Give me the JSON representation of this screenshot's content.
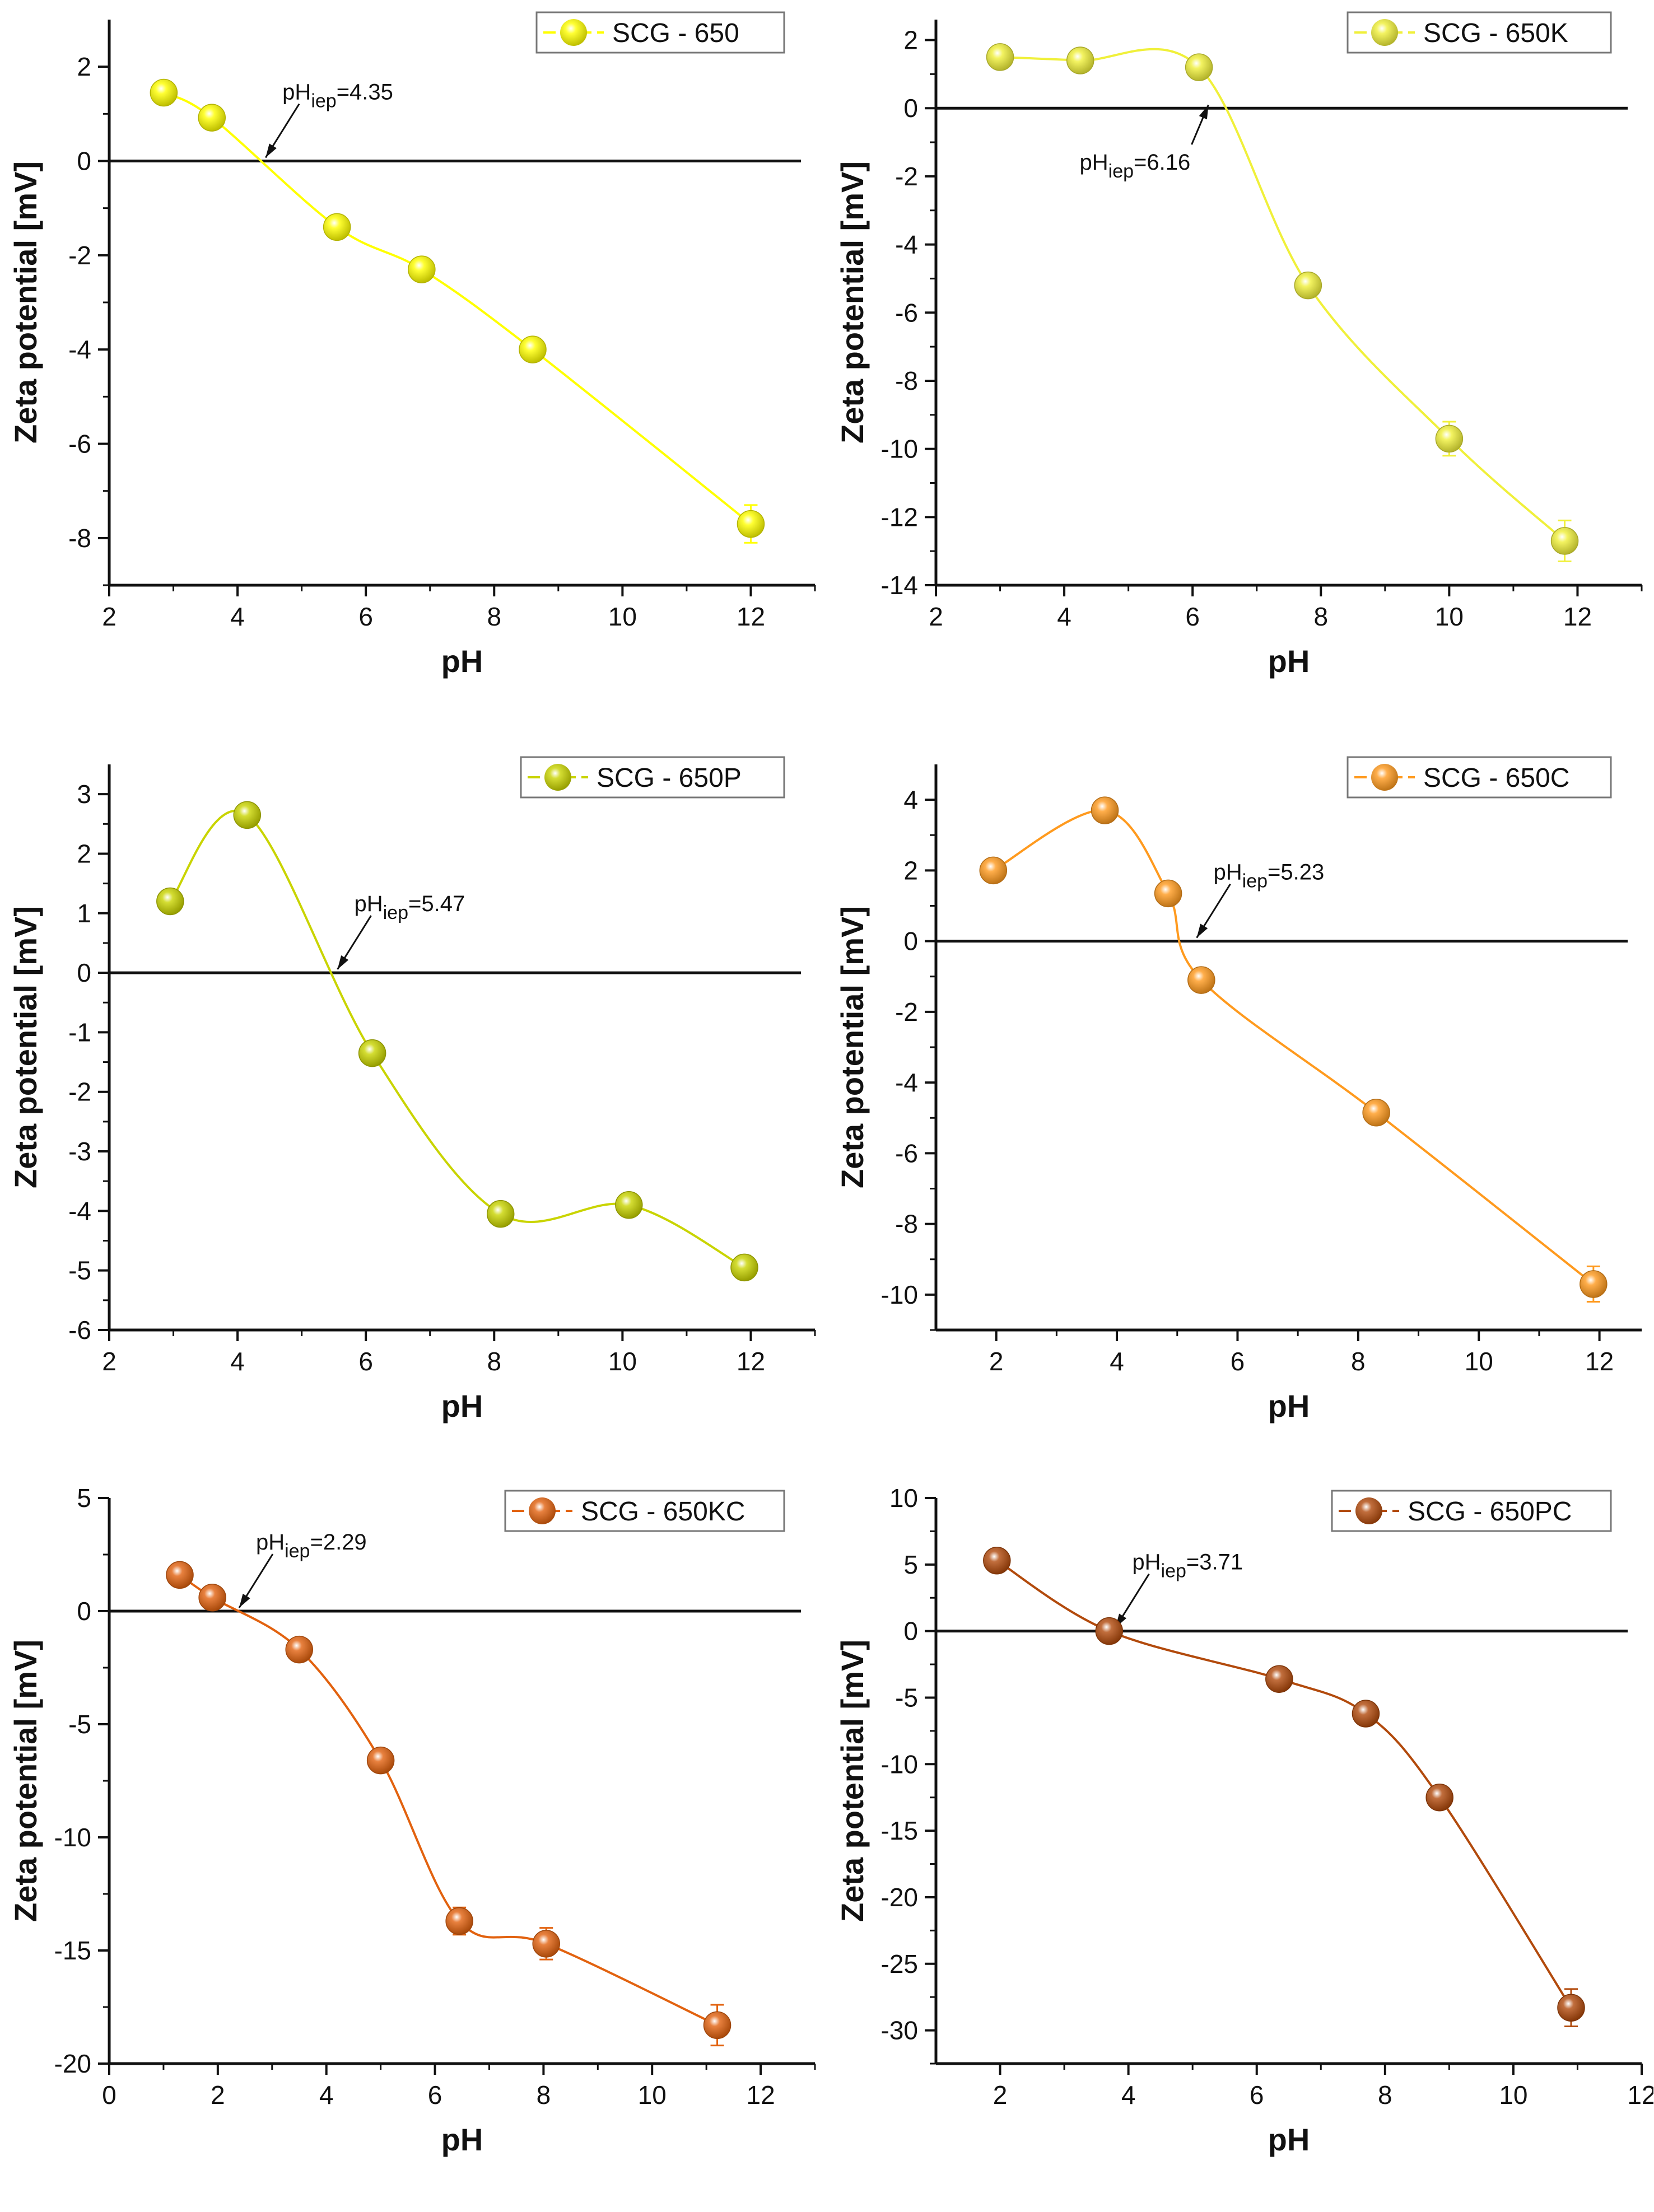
{
  "chart_data": [
    {
      "type": "line",
      "title": "",
      "legend": "SCG - 650",
      "legend_position": "top-right",
      "color": "#ffff00",
      "xlabel": "pH",
      "ylabel": "Zeta potential [mV]",
      "xlim": [
        2,
        13
      ],
      "ylim": [
        -9,
        3
      ],
      "xticks": [
        2,
        4,
        6,
        8,
        10,
        12
      ],
      "yticks": [
        2,
        0,
        -2,
        -4,
        -6,
        -8
      ],
      "x": [
        2.85,
        3.6,
        5.55,
        6.87,
        8.6,
        12.0
      ],
      "y": [
        1.45,
        0.92,
        -1.4,
        -2.3,
        -4.0,
        -7.7
      ],
      "yerr": [
        0.05,
        0.05,
        0.05,
        0.05,
        0.05,
        0.4
      ],
      "annotation": {
        "prefix": "pH",
        "sub": "iep",
        "suffix": "=4.35",
        "iep": 4.35
      }
    },
    {
      "type": "line",
      "title": "",
      "legend": "SCG - 650K",
      "legend_position": "top-right",
      "color": "#f0f03a",
      "xlabel": "pH",
      "ylabel": "Zeta potential [mV]",
      "xlim": [
        2,
        13
      ],
      "ylim": [
        -14,
        2.6
      ],
      "xticks": [
        2,
        4,
        6,
        8,
        10,
        12
      ],
      "yticks": [
        2,
        0,
        -2,
        -4,
        -6,
        -8,
        -10,
        -12,
        -14
      ],
      "x": [
        3.0,
        4.25,
        6.1,
        7.8,
        10.0,
        11.8
      ],
      "y": [
        1.5,
        1.4,
        1.2,
        -5.2,
        -9.7,
        -12.7
      ],
      "yerr": [
        0.05,
        0.05,
        0.05,
        0.1,
        0.5,
        0.6
      ],
      "annotation": {
        "prefix": "pH",
        "sub": "iep",
        "suffix": "=6.16",
        "iep": 6.16
      }
    },
    {
      "type": "line",
      "title": "",
      "legend": "SCG - 650P",
      "legend_position": "top-right",
      "color": "#c9d400",
      "xlabel": "pH",
      "ylabel": "Zeta potential [mV]",
      "xlim": [
        2,
        13
      ],
      "ylim": [
        -6,
        3.5
      ],
      "xticks": [
        2,
        4,
        6,
        8,
        10,
        12
      ],
      "yticks": [
        3,
        2,
        1,
        0,
        -1,
        -2,
        -3,
        -4,
        -5,
        -6
      ],
      "x": [
        2.95,
        4.15,
        6.1,
        8.1,
        10.1,
        11.9
      ],
      "y": [
        1.2,
        2.65,
        -1.35,
        -4.05,
        -3.9,
        -4.95
      ],
      "yerr": [
        0.05,
        0.05,
        0.05,
        0.05,
        0.05,
        0.2
      ],
      "annotation": {
        "prefix": "pH",
        "sub": "iep",
        "suffix": "=5.47",
        "iep": 5.47
      }
    },
    {
      "type": "line",
      "title": "",
      "legend": "SCG - 650C",
      "legend_position": "top-right",
      "color": "#ff9a1e",
      "xlabel": "pH",
      "ylabel": "Zeta potential [mV]",
      "xlim": [
        1,
        12.7
      ],
      "ylim": [
        -11,
        5
      ],
      "xticks": [
        2,
        4,
        6,
        8,
        10,
        12
      ],
      "yticks": [
        4,
        2,
        0,
        -2,
        -4,
        -6,
        -8,
        -10
      ],
      "x": [
        1.95,
        3.8,
        4.85,
        5.4,
        8.3,
        11.9
      ],
      "y": [
        2.0,
        3.7,
        1.35,
        -1.1,
        -4.85,
        -9.7
      ],
      "yerr": [
        0.05,
        0.05,
        0.05,
        0.05,
        0.1,
        0.5
      ],
      "annotation": {
        "prefix": "pH",
        "sub": "iep",
        "suffix": "=5.23",
        "iep": 5.23
      }
    },
    {
      "type": "line",
      "title": "",
      "legend": "SCG - 650KC",
      "legend_position": "top-right",
      "color": "#e2620f",
      "xlabel": "pH",
      "ylabel": "Zeta potential [mV]",
      "xlim": [
        0,
        13
      ],
      "ylim": [
        -20,
        5
      ],
      "xticks": [
        0,
        2,
        4,
        6,
        8,
        10,
        12
      ],
      "yticks": [
        5,
        0,
        -5,
        -10,
        -15,
        -20
      ],
      "x": [
        1.3,
        1.9,
        3.5,
        5.0,
        6.45,
        8.05,
        11.2
      ],
      "y": [
        1.6,
        0.6,
        -1.7,
        -6.6,
        -13.7,
        -14.7,
        -18.3
      ],
      "yerr": [
        0.1,
        0.1,
        0.1,
        0.1,
        0.6,
        0.7,
        0.9
      ],
      "annotation": {
        "prefix": "pH",
        "sub": "iep",
        "suffix": "=2.29",
        "iep": 2.29
      }
    },
    {
      "type": "line",
      "title": "",
      "legend": "SCG - 650PC",
      "legend_position": "top-right",
      "color": "#b24a0c",
      "xlabel": "pH",
      "ylabel": "Zeta potential [mV]",
      "xlim": [
        1,
        12
      ],
      "ylim": [
        -32.5,
        10
      ],
      "xticks": [
        2,
        4,
        6,
        8,
        10,
        12
      ],
      "yticks": [
        10,
        5,
        0,
        -5,
        -10,
        -15,
        -20,
        -25,
        -30
      ],
      "x": [
        1.95,
        3.7,
        6.35,
        7.7,
        8.85,
        10.9
      ],
      "y": [
        5.3,
        0.0,
        -3.6,
        -6.2,
        -12.5,
        -28.3
      ],
      "yerr": [
        0.2,
        0.2,
        0.2,
        0.2,
        0.3,
        1.4
      ],
      "annotation": {
        "prefix": "pH",
        "sub": "iep",
        "suffix": "=3.71",
        "iep": 3.71
      }
    }
  ]
}
